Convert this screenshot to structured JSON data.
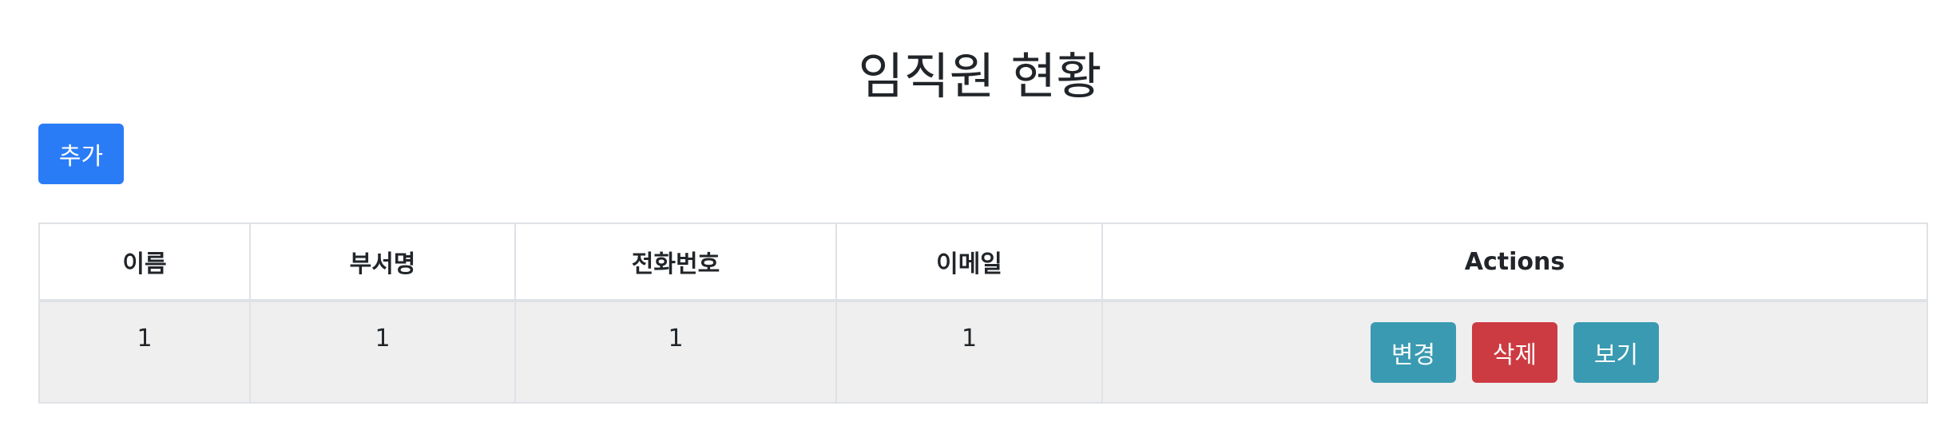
{
  "page": {
    "title": "임직원 현황"
  },
  "toolbar": {
    "add_label": "추가"
  },
  "table": {
    "headers": [
      "이름",
      "부서명",
      "전화번호",
      "이메일",
      "Actions"
    ],
    "rows": [
      {
        "name": "1",
        "department": "1",
        "phone": "1",
        "email": "1",
        "actions": {
          "edit_label": "변경",
          "delete_label": "삭제",
          "view_label": "보기"
        }
      }
    ]
  },
  "colors": {
    "primary": "#2a7cf6",
    "info": "#3a9ab1",
    "danger": "#cc3b42",
    "row_background": "#efefef",
    "border": "#dee2e6"
  }
}
